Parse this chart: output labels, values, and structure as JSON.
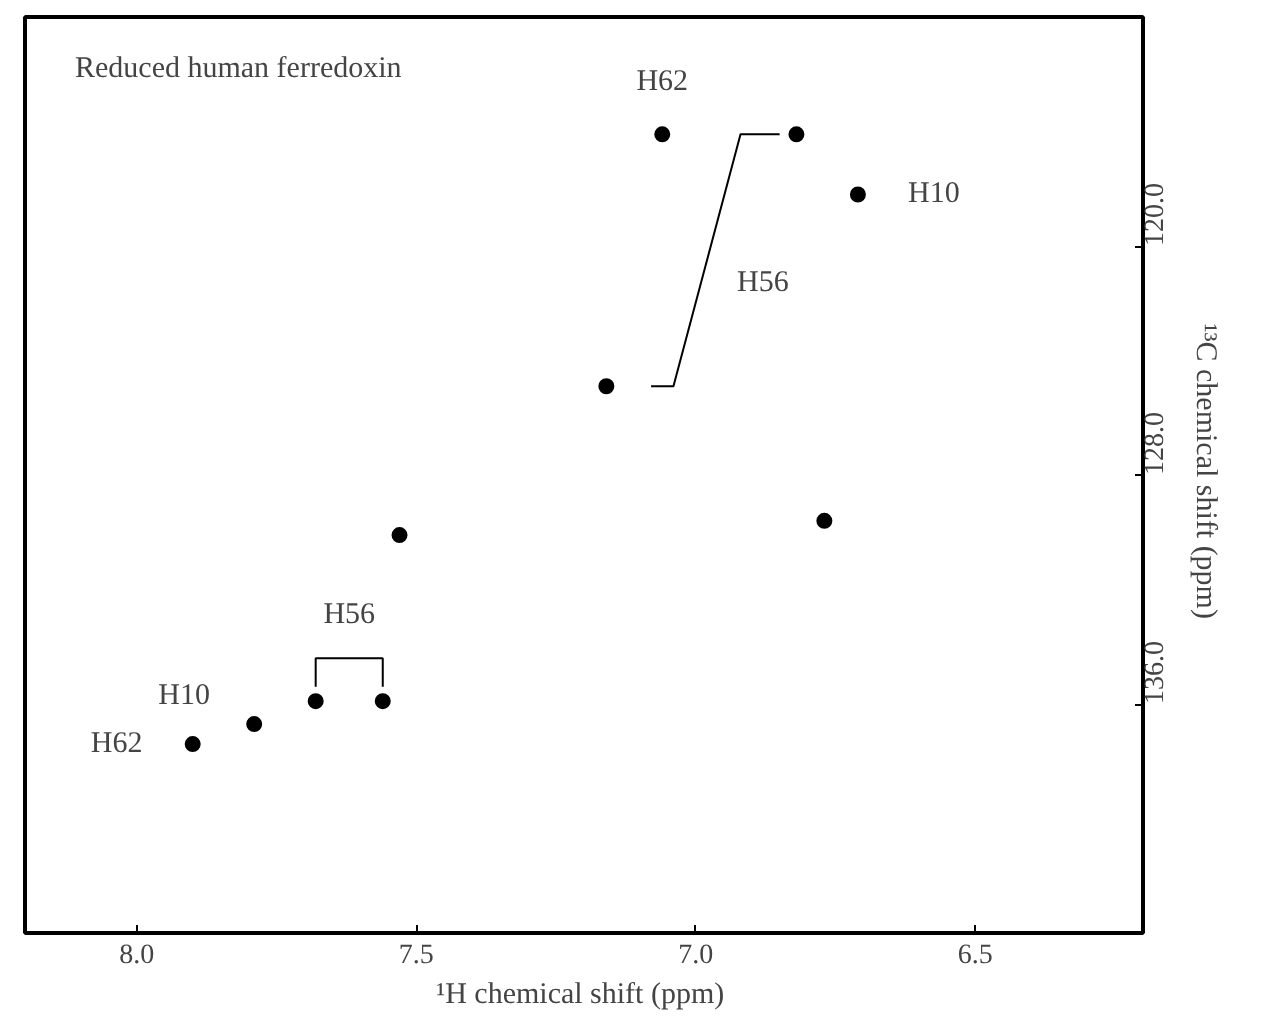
{
  "chart_data": {
    "type": "scatter",
    "xlabel": "¹H chemical shift  (ppm)",
    "ylabel": "¹³C chemical shift  (ppm)",
    "xlim": [
      8.2,
      6.2
    ],
    "xticks": [
      {
        "value": 8.0,
        "label": "8.0"
      },
      {
        "value": 7.5,
        "label": "7.5"
      },
      {
        "value": 7.0,
        "label": "7.0"
      },
      {
        "value": 6.5,
        "label": "6.5"
      }
    ],
    "ylim": [
      144,
      112
    ],
    "yticks": [
      {
        "value": 120,
        "label": "120.0"
      },
      {
        "value": 128,
        "label": "128.0"
      },
      {
        "value": 136,
        "label": "136.0"
      }
    ],
    "x": [
      7.06,
      6.82,
      6.71,
      7.16,
      7.53,
      6.77,
      7.9,
      7.79,
      7.68,
      7.56
    ],
    "series": [
      {
        "color": "#000000",
        "values": [
          116.1,
          116.1,
          118.2,
          124.9,
          130.1,
          129.6,
          137.4,
          136.7,
          135.9,
          135.9
        ]
      },
      {
        "type": "line",
        "marker": "none",
        "color": "#000000",
        "x": [
          7.08,
          7.04,
          6.92,
          6.85
        ],
        "values": [
          124.9,
          124.9,
          116.1,
          116.1
        ]
      }
    ],
    "marker": "circle",
    "grid": false,
    "annotations": [
      "Reduced human ferredoxin",
      {
        "text": "H62",
        "x": 7.06,
        "y": 116.1
      },
      {
        "text": "H10",
        "x": 6.71,
        "y": 118.2
      },
      "H56",
      {
        "text": "H62",
        "x": 7.9,
        "y": 137.4
      },
      {
        "text": "H10",
        "x": 7.79,
        "y": 136.7
      },
      "H56"
    ]
  }
}
